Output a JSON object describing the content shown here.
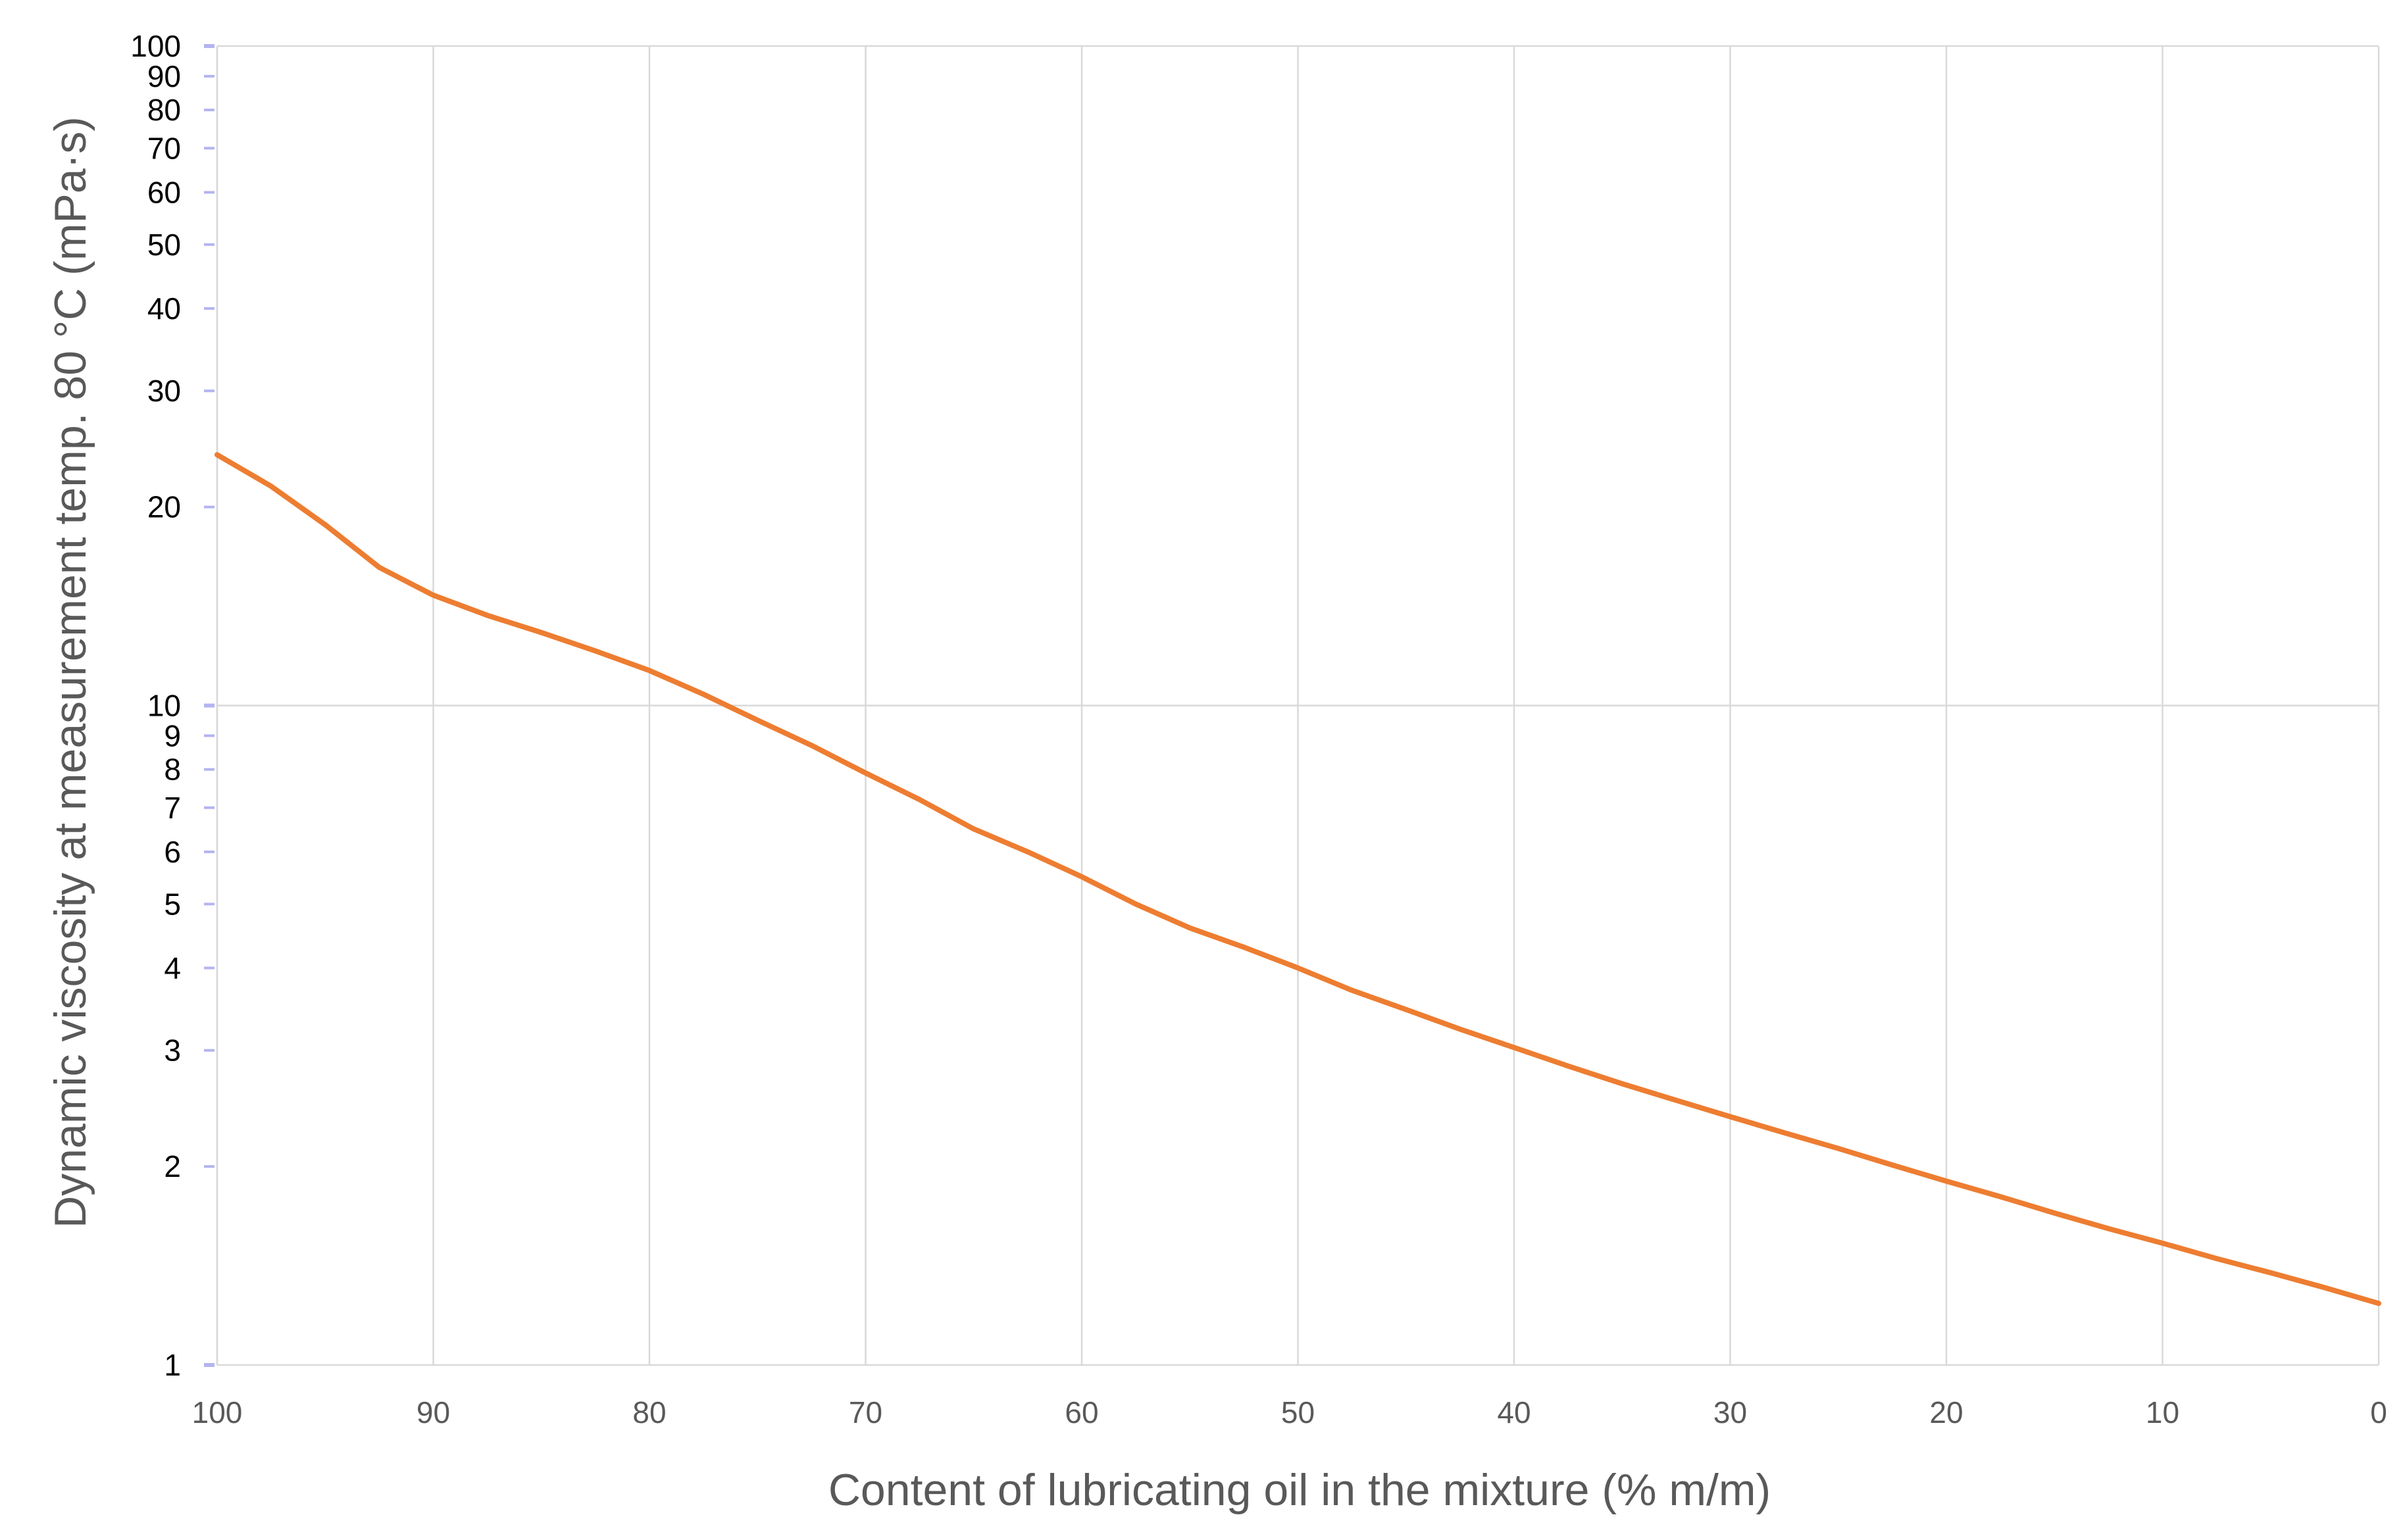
{
  "chart_data": {
    "type": "line",
    "title": "",
    "xlabel": "Content of lubricating oil in the mixture (% m/m)",
    "ylabel": "Dynamic viscosity at measurement temp. 80 °C (mPa·s)",
    "xlim": [
      100,
      0
    ],
    "x_reversed": true,
    "ylim": [
      1,
      100
    ],
    "y_scale": "log",
    "x_ticks": [
      100,
      90,
      80,
      70,
      60,
      50,
      40,
      30,
      20,
      10,
      0
    ],
    "x_tick_labels": [
      "100",
      "90",
      "80",
      "70",
      "60",
      "50",
      "40",
      "30",
      "20",
      "10",
      "0"
    ],
    "y_ticks": [
      1,
      2,
      3,
      4,
      5,
      6,
      7,
      8,
      9,
      10,
      20,
      30,
      40,
      50,
      60,
      70,
      80,
      90,
      100
    ],
    "y_tick_labels": [
      "1",
      "2",
      "3",
      "4",
      "5",
      "6",
      "7",
      "8",
      "9",
      "10",
      "20",
      "30",
      "40",
      "50",
      "60",
      "70",
      "80",
      "90",
      "100"
    ],
    "vertical_grid": true,
    "horizontal_grid_at": [
      10,
      100
    ],
    "legend": "none",
    "line_color": "#ED7D31",
    "grid_color": "#D9D9D9",
    "tick_mark_color": "#B4B4F0",
    "series": [
      {
        "x": [
          100,
          97.5,
          95,
          92.5,
          90,
          87.5,
          85,
          82.5,
          80,
          77.5,
          75,
          72.5,
          70,
          67.5,
          65,
          62.5,
          60,
          57.5,
          55,
          52.5,
          50,
          47.5,
          45,
          42.5,
          40,
          37.5,
          35,
          32.5,
          30,
          27.5,
          25,
          22.5,
          20,
          17.5,
          15,
          12.5,
          10,
          7.5,
          5,
          2.5,
          0
        ],
        "y": [
          24,
          21.5,
          18.8,
          16.2,
          14.7,
          13.7,
          12.9,
          12.1,
          11.3,
          10.4,
          9.5,
          8.7,
          7.9,
          7.2,
          6.5,
          6.0,
          5.5,
          5.0,
          4.6,
          4.3,
          4.0,
          3.7,
          3.46,
          3.23,
          3.03,
          2.84,
          2.67,
          2.52,
          2.38,
          2.25,
          2.13,
          2.01,
          1.9,
          1.8,
          1.7,
          1.61,
          1.53,
          1.45,
          1.38,
          1.31,
          1.24
        ]
      }
    ]
  }
}
